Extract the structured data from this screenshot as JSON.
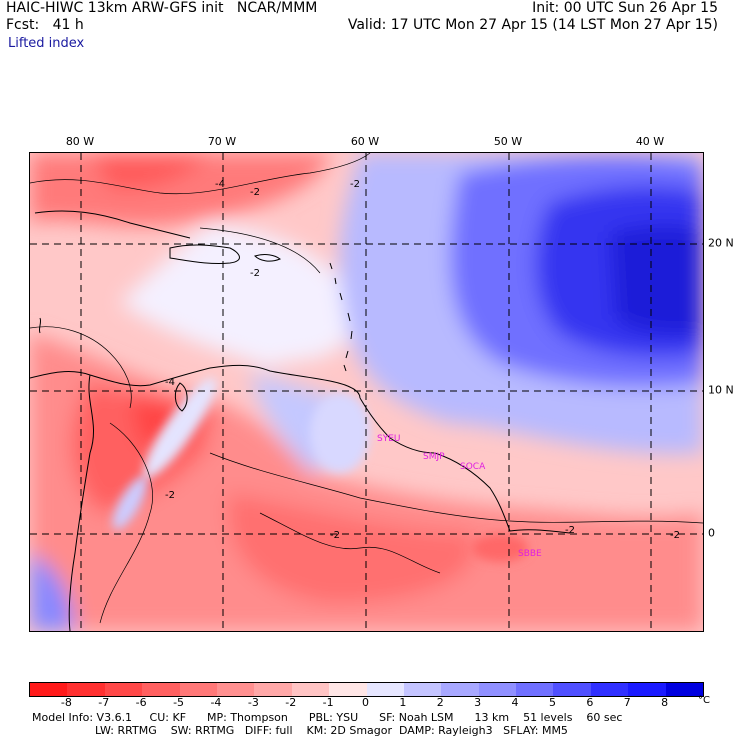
{
  "header": {
    "title": "HAIC-HIWC 13km ARW-GFS init   NCAR/MMM",
    "fcst": "Fcst:   41 h",
    "init": "Init: 00 UTC Sun 26 Apr 15",
    "valid": "Valid: 17 UTC Mon 27 Apr 15 (14 LST Mon 27 Apr 15)"
  },
  "field_label": "Lifted index",
  "map": {
    "lon_labels": [
      "80 W",
      "70 W",
      "60 W",
      "50 W",
      "40 W"
    ],
    "lat_labels": [
      "20 N",
      "10 N",
      "0"
    ],
    "station_labels": [
      "SYEU",
      "SMJP",
      "SOCA",
      "SBBE"
    ],
    "contour_labels": [
      "-4",
      "-2",
      "-2",
      "-2",
      "-4",
      "-2",
      "-2",
      "-2",
      "-2"
    ]
  },
  "colorbar": {
    "labels": [
      "-8",
      "-7",
      "-6",
      "-5",
      "-4",
      "-3",
      "-2",
      "-1",
      "0",
      "1",
      "2",
      "3",
      "4",
      "5",
      "6",
      "7",
      "8"
    ],
    "unit": "°C",
    "colors": [
      "#ff1a1a",
      "#ff3030",
      "#ff4848",
      "#ff6060",
      "#ff7878",
      "#ff9090",
      "#ffa8a8",
      "#ffc4c4",
      "#ffe6e6",
      "#e6e6ff",
      "#c4c4ff",
      "#a8a8ff",
      "#9090ff",
      "#7070ff",
      "#5050ff",
      "#3030ff",
      "#1a1aff",
      "#0000e0"
    ]
  },
  "footer": {
    "line1": "Model Info: V3.6.1     CU: KF      MP: Thompson      PBL: YSU      SF: Noah LSM      13 km    51 levels    60 sec",
    "line2": "                  LW: RRTMG    SW: RRTMG   DIFF: full    KM: 2D Smagor  DAMP: Rayleigh3   SFLAY: MM5"
  }
}
